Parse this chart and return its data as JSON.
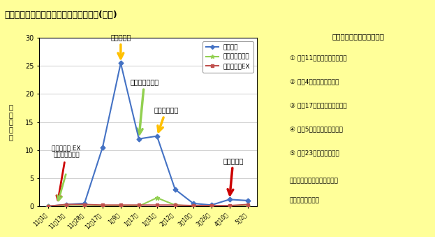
{
  "title": "イチゴでの実証調査結果のまとめと提供(事例)",
  "title_bg": "#ffff00",
  "x_labels": [
    "11月1日",
    "11月13日",
    "11月28日",
    "12月17日",
    "1月9日",
    "1月17日",
    "1月31日",
    "2月12日",
    "3月10日",
    "3月26日",
    "4月10日",
    "5月2日"
  ],
  "hadani": [
    0,
    0.3,
    0.5,
    10.5,
    25.5,
    12,
    12.5,
    3,
    0.5,
    0.2,
    1.2,
    1
  ],
  "spidex": [
    0,
    0,
    0,
    0,
    0,
    0,
    1.5,
    0.2,
    0,
    0,
    0,
    0
  ],
  "spikal": [
    0,
    0.3,
    0.3,
    0.2,
    0.2,
    0.2,
    0.2,
    0.2,
    0.1,
    0.1,
    0.1,
    0.3
  ],
  "hadani_color": "#4472c4",
  "spidex_color": "#92d050",
  "spikal_color": "#c0504d",
  "ylim": [
    0,
    30
  ],
  "yticks": [
    0,
    5,
    10,
    15,
    20,
    25,
    30
  ],
  "ylabel": "頭\n／\n１\n０\n葉",
  "chart_bg": "#ffffff",
  "outer_bg": "#ffff99",
  "legend_labels": [
    "ハダニ類",
    "スパイデックス",
    "スパイカルEX"
  ],
  "info_box_title": "ハダニの化学農薬防除経過",
  "info_lines": [
    "① ９月11日　アファーム散布",
    "② １月4日　　カネマイト",
    "③ １月17日　スパイデックス",
    "④ ２月5日　　スターマイト",
    "⑤ ４月23日　アーデント",
    "（アザミウマ防除を主体とし",
    "　リセット防除）"
  ]
}
